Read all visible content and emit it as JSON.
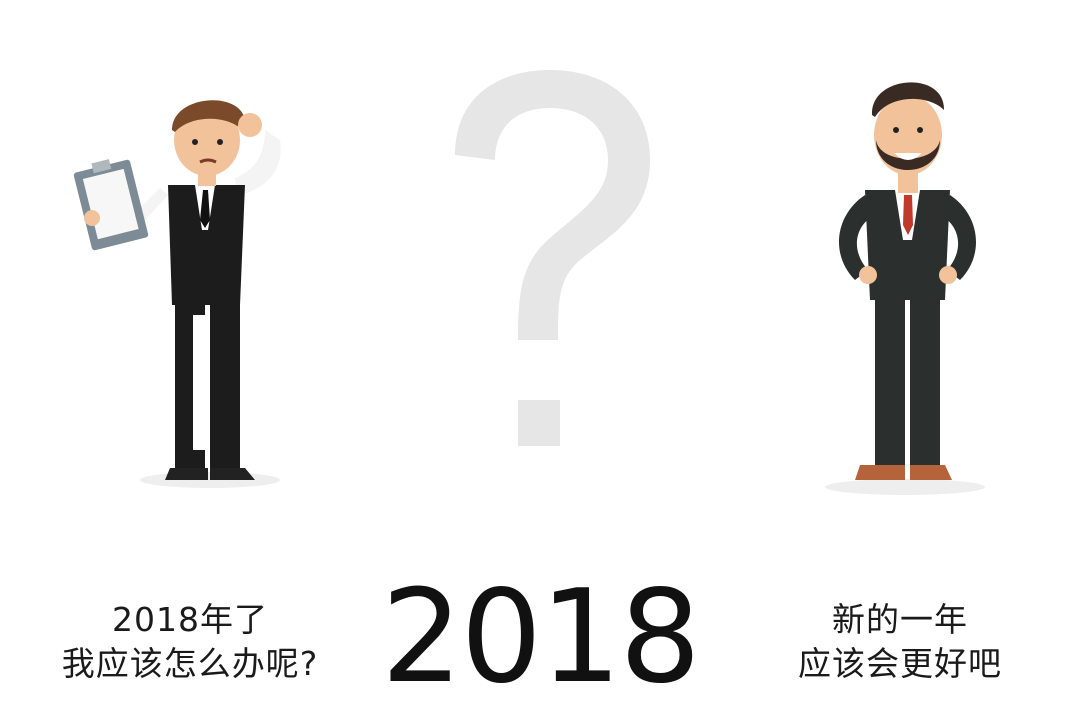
{
  "colors": {
    "background": "#ffffff",
    "question_mark": "#e6e6e6",
    "suit": "#1c1c1c",
    "suit_right": "#2b2f2e",
    "skin": "#f2c39b",
    "hair": "#7a4a2a",
    "tie_right": "#c0392b",
    "shoes_right": "#b5633a",
    "clipboard": "#7d8b96"
  },
  "icons": {
    "center": "question-mark-icon",
    "left": "confused-man-with-clipboard",
    "right": "smiling-bearded-man"
  },
  "captions": {
    "left": {
      "line1": "2018年了",
      "line2": "我应该怎么办呢?"
    },
    "center": {
      "year": "2018"
    },
    "right": {
      "line1": "新的一年",
      "line2": "应该会更好吧"
    }
  }
}
